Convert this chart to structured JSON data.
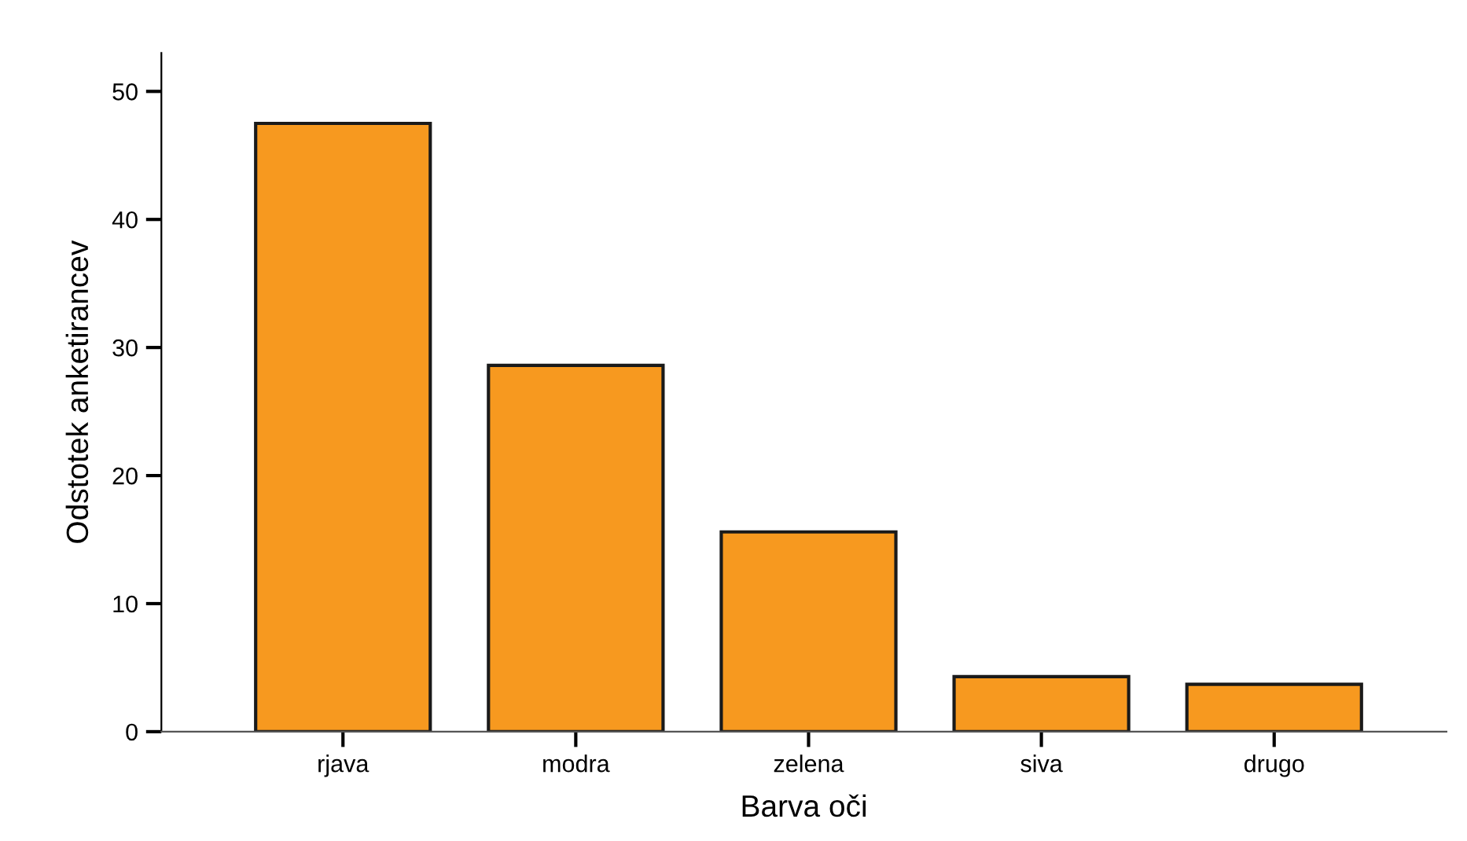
{
  "chart_data": {
    "type": "bar",
    "xlabel": "Barva oči",
    "ylabel": "Odstotek anketirancev",
    "categories": [
      "rjava",
      "modra",
      "zelena",
      "siva",
      "drugo"
    ],
    "values": [
      47.5,
      28.6,
      15.6,
      4.3,
      3.7
    ],
    "color": "#f7991f",
    "ylim": [
      0,
      53
    ],
    "yticks": [
      0,
      10,
      20,
      30,
      40,
      50
    ],
    "grid": false
  }
}
